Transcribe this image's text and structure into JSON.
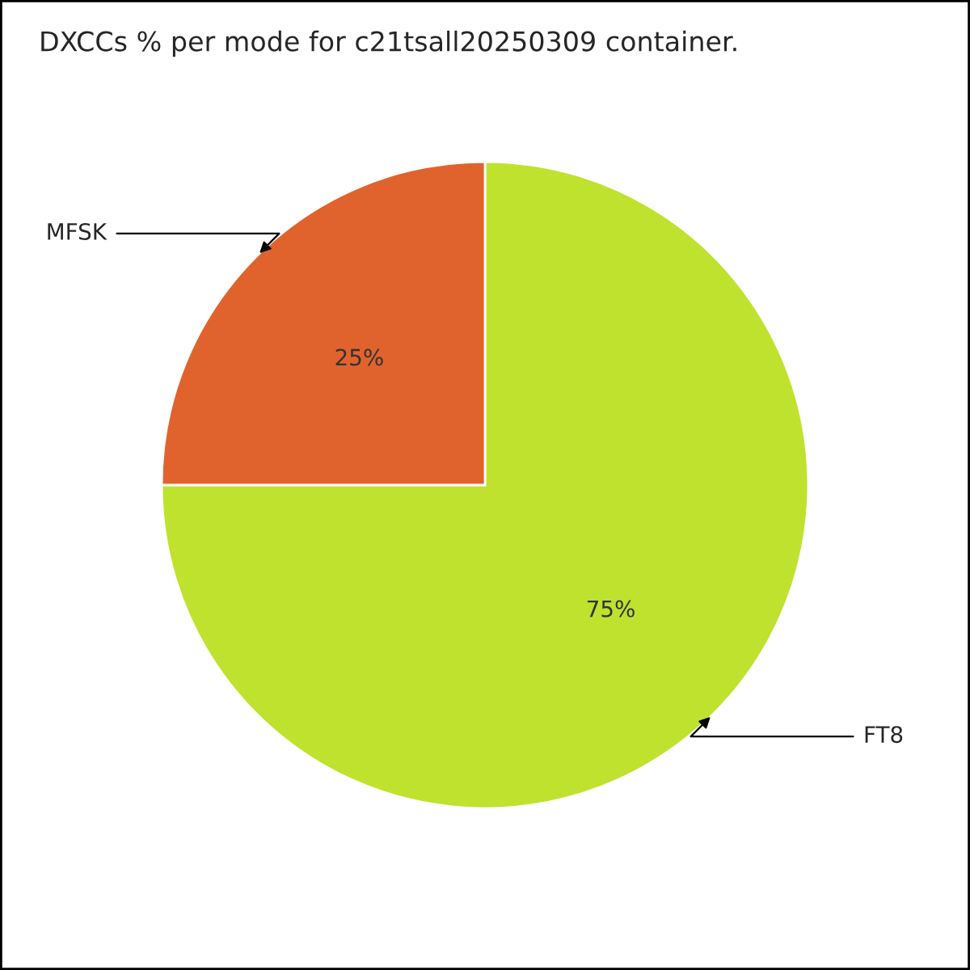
{
  "chart_data": {
    "type": "pie",
    "title": "DXCCs % per mode for c21tsall20250309 container.",
    "categories": [
      "FT8",
      "MFSK"
    ],
    "values": [
      75,
      25
    ],
    "colors": [
      "#bfe22f",
      "#e0632e"
    ],
    "value_labels": [
      "75%",
      "25%"
    ],
    "legend": false
  }
}
